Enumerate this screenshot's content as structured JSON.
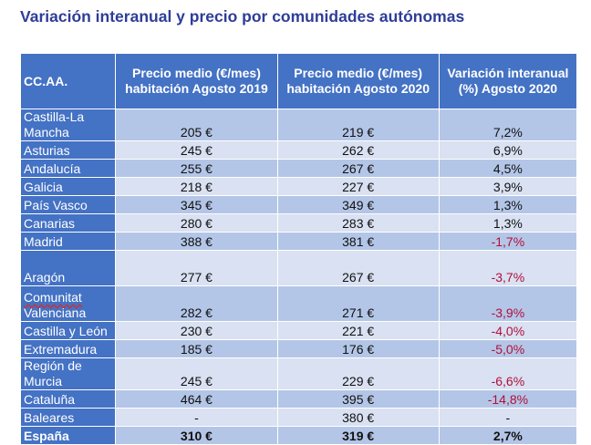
{
  "title": "Variación interanual y precio por comunidades autónomas",
  "headers": [
    "CC.AA.",
    "Precio medio (€/mes) habitación Agosto 2019",
    "Precio medio (€/mes) habitación Agosto 2020",
    "Variación interanual (%) Agosto 2020"
  ],
  "rows": [
    {
      "name": "Castilla-La Mancha",
      "p2019": "205 €",
      "p2020": "219 €",
      "var": "7,2%"
    },
    {
      "name": "Asturias",
      "p2019": "245 €",
      "p2020": "262 €",
      "var": "6,9%"
    },
    {
      "name": "Andalucía",
      "p2019": "255 €",
      "p2020": "267 €",
      "var": "4,5%"
    },
    {
      "name": "Galicia",
      "p2019": "218 €",
      "p2020": "227 €",
      "var": "3,9%"
    },
    {
      "name": "País Vasco",
      "p2019": "345 €",
      "p2020": "349 €",
      "var": "1,3%"
    },
    {
      "name": "Canarias",
      "p2019": "280 €",
      "p2020": "283 €",
      "var": "1,3%"
    },
    {
      "name": "Madrid",
      "p2019": "388 €",
      "p2020": "381 €",
      "var": "-1,7%"
    },
    {
      "name": "Aragón",
      "p2019": "277 €",
      "p2020": "267 €",
      "var": "-3,7%"
    },
    {
      "name": "Comunitat Valenciana",
      "name_line1": "Comunitat",
      "name_line2": "Valenciana",
      "p2019": "282 €",
      "p2020": "271 €",
      "var": "-3,9%"
    },
    {
      "name": "Castilla y León",
      "p2019": "230 €",
      "p2020": "221 €",
      "var": "-4,0%"
    },
    {
      "name": "Extremadura",
      "p2019": "185 €",
      "p2020": "176 €",
      "var": "-5,0%"
    },
    {
      "name": "Región de Murcia",
      "p2019": "245 €",
      "p2020": "229 €",
      "var": "-6,6%"
    },
    {
      "name": "Cataluña",
      "p2019": "464 €",
      "p2020": "395 €",
      "var": "-14,8%"
    },
    {
      "name": "Baleares",
      "p2019": "-",
      "p2020": "380 €",
      "var": "-"
    }
  ],
  "total": {
    "name": "España",
    "p2019": "310 €",
    "p2020": "319 €",
    "var": "2,7%"
  },
  "colors": {
    "header": "#4472C4",
    "row_dark": "#B4C6E7",
    "row_light": "#D9E1F2",
    "negative": "#B0103A",
    "title": "#2E3D98"
  }
}
